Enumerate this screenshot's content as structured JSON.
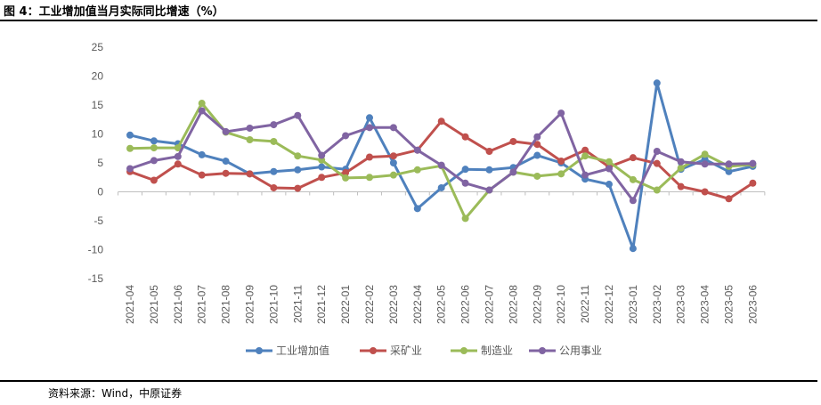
{
  "figure_title": "图 4：工业增加值当月实际同比增速（%）",
  "source_note": "资料来源：Wind，中原证券",
  "chart_data": {
    "type": "line",
    "categories": [
      "2021-04",
      "2021-05",
      "2021-06",
      "2021-07",
      "2021-08",
      "2021-09",
      "2021-10",
      "2021-11",
      "2021-12",
      "2022-01",
      "2022-02",
      "2022-03",
      "2022-04",
      "2022-05",
      "2022-06",
      "2022-07",
      "2022-08",
      "2022-09",
      "2022-10",
      "2022-11",
      "2022-12",
      "2023-01",
      "2023-02",
      "2023-03",
      "2023-04",
      "2023-05",
      "2023-06"
    ],
    "ylim": [
      -15,
      25
    ],
    "yticks": [
      25,
      20,
      15,
      10,
      5,
      0,
      -5,
      -10,
      -15
    ],
    "grid": false,
    "legend_position": "bottom",
    "series": [
      {
        "name": "工业增加值",
        "color": "#4F81BD",
        "values": [
          9.8,
          8.8,
          8.3,
          6.4,
          5.3,
          3.1,
          3.5,
          3.8,
          4.3,
          3.9,
          12.8,
          5.0,
          -2.9,
          0.7,
          3.9,
          3.8,
          4.2,
          6.3,
          5.0,
          2.2,
          1.3,
          -9.8,
          18.8,
          3.9,
          5.6,
          3.5,
          4.4
        ]
      },
      {
        "name": "采矿业",
        "color": "#C0504D",
        "values": [
          3.5,
          2.0,
          4.8,
          2.9,
          3.2,
          3.1,
          0.7,
          0.6,
          2.5,
          3.3,
          6.0,
          6.2,
          7.2,
          12.2,
          9.5,
          7.0,
          8.7,
          8.2,
          5.3,
          7.2,
          4.3,
          5.9,
          4.9,
          0.9,
          0.0,
          -1.2,
          1.5
        ]
      },
      {
        "name": "制造业",
        "color": "#9BBB59",
        "values": [
          7.5,
          7.6,
          7.6,
          15.3,
          10.3,
          9.0,
          8.7,
          6.2,
          5.5,
          2.4,
          2.5,
          2.9,
          3.8,
          4.5,
          -4.6,
          0.3,
          3.4,
          2.7,
          3.1,
          6.2,
          5.2,
          2.1,
          0.3,
          4.1,
          6.5,
          4.4,
          4.7
        ]
      },
      {
        "name": "公用事业",
        "color": "#8064A2",
        "values": [
          4.0,
          5.4,
          6.1,
          14.0,
          10.4,
          11.0,
          11.6,
          13.2,
          6.3,
          9.7,
          11.1,
          11.1,
          7.2,
          4.6,
          1.5,
          0.3,
          3.4,
          9.5,
          13.6,
          2.9,
          4.0,
          -1.5,
          7.0,
          5.2,
          4.8,
          4.8,
          4.9
        ]
      }
    ]
  }
}
